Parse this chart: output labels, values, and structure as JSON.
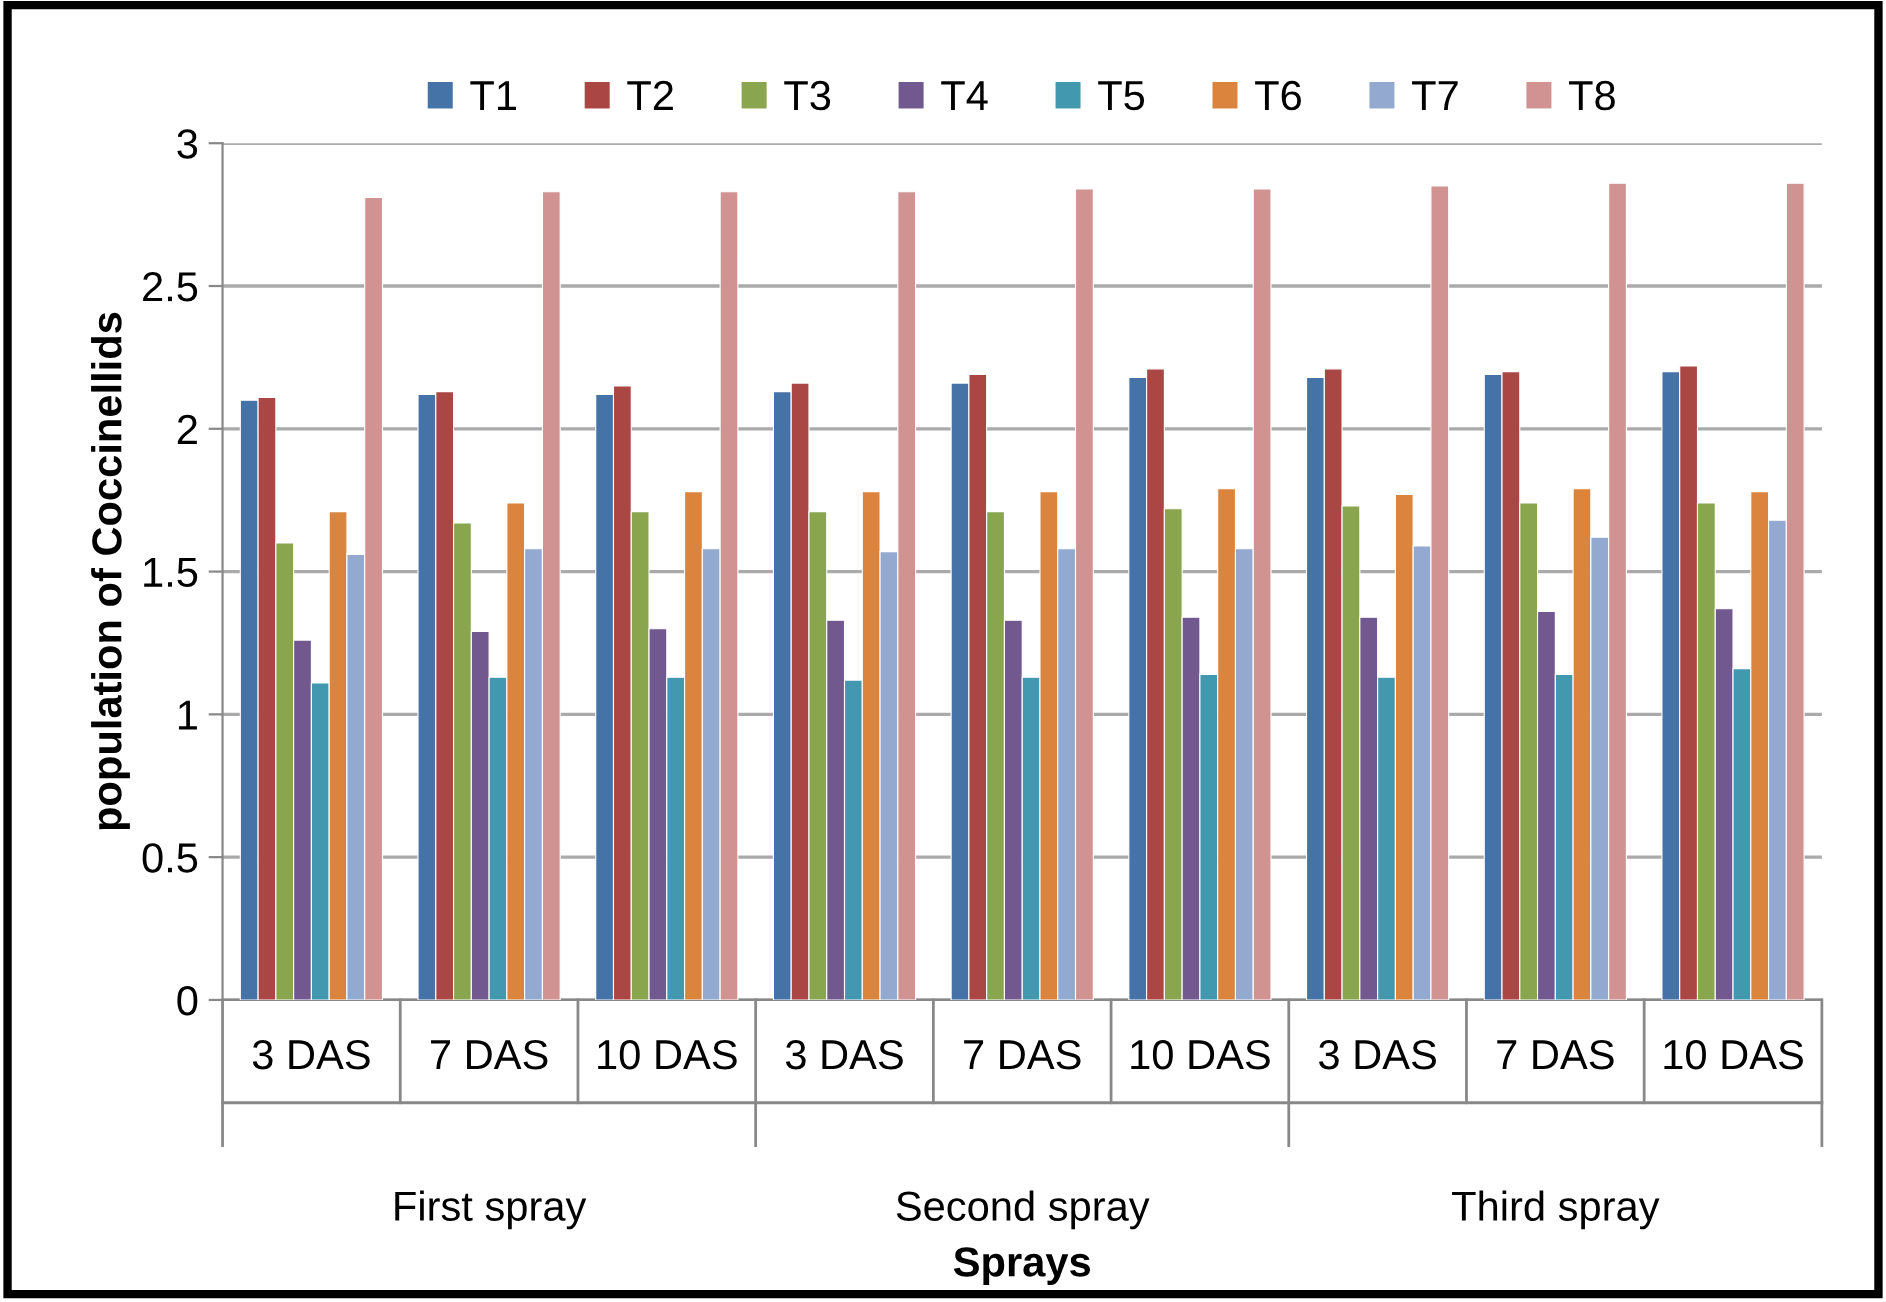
{
  "chart_data": {
    "type": "bar",
    "xlabel": "Sprays",
    "ylabel": "population of Coccinellids",
    "categories": [
      "3 DAS",
      "7 DAS",
      "10 DAS",
      "3 DAS",
      "7 DAS",
      "10 DAS",
      "3 DAS",
      "7 DAS",
      "10 DAS"
    ],
    "annotations": [
      "First spray",
      "Second spray",
      "Third spray"
    ],
    "series": [
      {
        "name": "T1",
        "color": "#4572a7",
        "values": [
          2.1,
          2.12,
          2.12,
          2.13,
          2.16,
          2.18,
          2.18,
          2.19,
          2.2
        ]
      },
      {
        "name": "T2",
        "color": "#aa4643",
        "values": [
          2.11,
          2.13,
          2.15,
          2.16,
          2.19,
          2.21,
          2.21,
          2.2,
          2.22
        ]
      },
      {
        "name": "T3",
        "color": "#89a54e",
        "values": [
          1.6,
          1.67,
          1.71,
          1.71,
          1.71,
          1.72,
          1.73,
          1.74,
          1.74
        ]
      },
      {
        "name": "T4",
        "color": "#71588f",
        "values": [
          1.26,
          1.29,
          1.3,
          1.33,
          1.33,
          1.34,
          1.34,
          1.36,
          1.37
        ]
      },
      {
        "name": "T5",
        "color": "#4198af",
        "values": [
          1.11,
          1.13,
          1.13,
          1.12,
          1.13,
          1.14,
          1.13,
          1.14,
          1.16
        ]
      },
      {
        "name": "T6",
        "color": "#db843d",
        "values": [
          1.71,
          1.74,
          1.78,
          1.78,
          1.78,
          1.79,
          1.77,
          1.79,
          1.78
        ]
      },
      {
        "name": "T7",
        "color": "#93a9cf",
        "values": [
          1.56,
          1.58,
          1.58,
          1.57,
          1.58,
          1.58,
          1.59,
          1.62,
          1.68
        ]
      },
      {
        "name": "T8",
        "color": "#d19392",
        "values": [
          2.81,
          2.83,
          2.83,
          2.83,
          2.84,
          2.84,
          2.85,
          2.86,
          2.86
        ]
      }
    ],
    "ylim": [
      0,
      3
    ],
    "yticks": [
      0,
      0.5,
      1,
      1.5,
      2,
      2.5,
      3
    ],
    "grid": "y",
    "legend": "top"
  }
}
